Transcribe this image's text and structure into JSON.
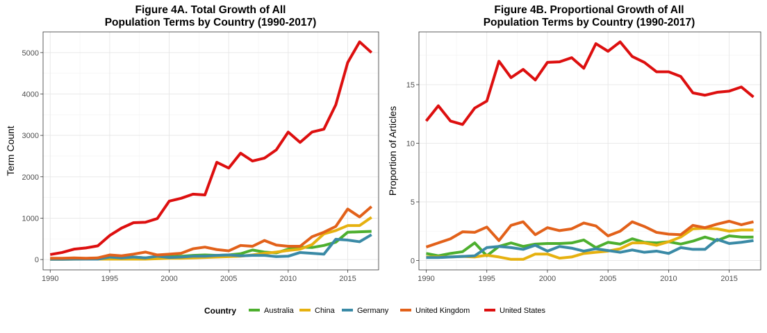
{
  "legend": {
    "title": "Country",
    "entries": [
      {
        "label": "Australia",
        "color": "#4daf2e"
      },
      {
        "label": "China",
        "color": "#e6b10f"
      },
      {
        "label": "Germany",
        "color": "#3a8aa6"
      },
      {
        "label": "United Kingdom",
        "color": "#e2611a"
      },
      {
        "label": "United States",
        "color": "#dd0f0f"
      }
    ]
  },
  "chart_data": [
    {
      "type": "line",
      "title": "Figure 4A. Total Growth of All\nPopulation Terms by Country (1990-2017)",
      "xlabel": "",
      "ylabel": "Term Count",
      "xlim": [
        1989.4,
        2017.6
      ],
      "ylim": [
        -250,
        5500
      ],
      "xticks": [
        1990,
        1995,
        2000,
        2005,
        2010,
        2015
      ],
      "yticks": [
        0,
        1000,
        2000,
        3000,
        4000,
        5000
      ],
      "x": [
        1990,
        1991,
        1992,
        1993,
        1994,
        1995,
        1996,
        1997,
        1998,
        1999,
        2000,
        2001,
        2002,
        2003,
        2004,
        2005,
        2006,
        2007,
        2008,
        2009,
        2010,
        2011,
        2012,
        2013,
        2014,
        2015,
        2016,
        2017
      ],
      "series": [
        {
          "name": "Australia",
          "color": "#4daf2e",
          "values": [
            10,
            10,
            15,
            20,
            40,
            30,
            40,
            60,
            40,
            60,
            70,
            80,
            100,
            110,
            100,
            110,
            140,
            230,
            180,
            160,
            250,
            300,
            290,
            340,
            420,
            660,
            670,
            680
          ]
        },
        {
          "name": "China",
          "color": "#e6b10f",
          "values": [
            5,
            5,
            8,
            10,
            10,
            10,
            10,
            10,
            10,
            20,
            30,
            30,
            40,
            50,
            60,
            70,
            80,
            110,
            150,
            180,
            220,
            250,
            360,
            620,
            700,
            820,
            820,
            1020
          ]
        },
        {
          "name": "Germany",
          "color": "#3a8aa6",
          "values": [
            5,
            5,
            10,
            10,
            10,
            60,
            40,
            60,
            40,
            80,
            50,
            60,
            80,
            80,
            100,
            110,
            90,
            100,
            100,
            70,
            80,
            170,
            150,
            130,
            490,
            470,
            430,
            600
          ]
        },
        {
          "name": "United Kingdom",
          "color": "#e2611a",
          "values": [
            30,
            30,
            40,
            30,
            40,
            110,
            90,
            130,
            180,
            110,
            130,
            150,
            260,
            300,
            240,
            210,
            340,
            320,
            460,
            350,
            320,
            320,
            550,
            660,
            800,
            1220,
            1030,
            1280
          ]
        },
        {
          "name": "United States",
          "color": "#dd0f0f",
          "values": [
            120,
            170,
            250,
            280,
            330,
            580,
            760,
            890,
            900,
            990,
            1410,
            1480,
            1580,
            1560,
            2350,
            2210,
            2570,
            2380,
            2450,
            2650,
            3080,
            2830,
            3080,
            3150,
            3740,
            4760,
            5260,
            5000
          ]
        }
      ]
    },
    {
      "type": "line",
      "title": "Figure 4B. Proportional Growth of All\nPopulation Terms by Country (1990-2017)",
      "xlabel": "",
      "ylabel": "Proportion of Articles",
      "xlim": [
        1989.4,
        2017.6
      ],
      "ylim": [
        -0.8,
        19.5
      ],
      "xticks": [
        1990,
        1995,
        2000,
        2005,
        2010,
        2015
      ],
      "yticks": [
        0,
        5,
        10,
        15
      ],
      "x": [
        1990,
        1991,
        1992,
        1993,
        1994,
        1995,
        1996,
        1997,
        1998,
        1999,
        2000,
        2001,
        2002,
        2003,
        2004,
        2005,
        2006,
        2007,
        2008,
        2009,
        2010,
        2011,
        2012,
        2013,
        2014,
        2015,
        2016,
        2017
      ],
      "series": [
        {
          "name": "Australia",
          "color": "#4daf2e",
          "values": [
            0.6,
            0.4,
            0.6,
            0.75,
            1.5,
            0.4,
            1.2,
            1.5,
            1.2,
            1.4,
            1.45,
            1.45,
            1.5,
            1.75,
            1.1,
            1.55,
            1.4,
            1.85,
            1.55,
            1.5,
            1.6,
            1.4,
            1.65,
            2.0,
            1.7,
            2.1,
            2.0,
            2.0
          ]
        },
        {
          "name": "China",
          "color": "#e6b10f",
          "values": [
            0.3,
            0.3,
            0.3,
            0.35,
            0.3,
            0.45,
            0.3,
            0.1,
            0.1,
            0.55,
            0.55,
            0.2,
            0.3,
            0.6,
            0.7,
            0.8,
            1.0,
            1.5,
            1.5,
            1.3,
            1.6,
            2.0,
            2.7,
            2.75,
            2.7,
            2.5,
            2.6,
            2.6
          ]
        },
        {
          "name": "Germany",
          "color": "#3a8aa6",
          "values": [
            0.25,
            0.25,
            0.3,
            0.35,
            0.4,
            1.1,
            1.2,
            1.1,
            0.95,
            1.3,
            0.8,
            1.2,
            1.05,
            0.8,
            1.0,
            0.85,
            0.7,
            0.9,
            0.7,
            0.8,
            0.6,
            1.1,
            0.95,
            0.95,
            1.8,
            1.45,
            1.55,
            1.7
          ]
        },
        {
          "name": "United Kingdom",
          "color": "#e2611a",
          "values": [
            1.15,
            1.5,
            1.85,
            2.45,
            2.4,
            2.85,
            1.7,
            3.0,
            3.3,
            2.2,
            2.8,
            2.55,
            2.7,
            3.2,
            2.95,
            2.1,
            2.5,
            3.3,
            2.9,
            2.4,
            2.25,
            2.2,
            3.0,
            2.8,
            3.1,
            3.35,
            3.05,
            3.3
          ]
        },
        {
          "name": "United States",
          "color": "#dd0f0f",
          "values": [
            11.9,
            13.2,
            11.9,
            11.6,
            13.0,
            13.6,
            17.0,
            15.6,
            16.3,
            15.4,
            16.9,
            16.95,
            17.3,
            16.4,
            18.5,
            17.85,
            18.65,
            17.4,
            16.9,
            16.1,
            16.1,
            15.7,
            14.3,
            14.1,
            14.35,
            14.45,
            14.8,
            13.95
          ]
        }
      ]
    }
  ]
}
